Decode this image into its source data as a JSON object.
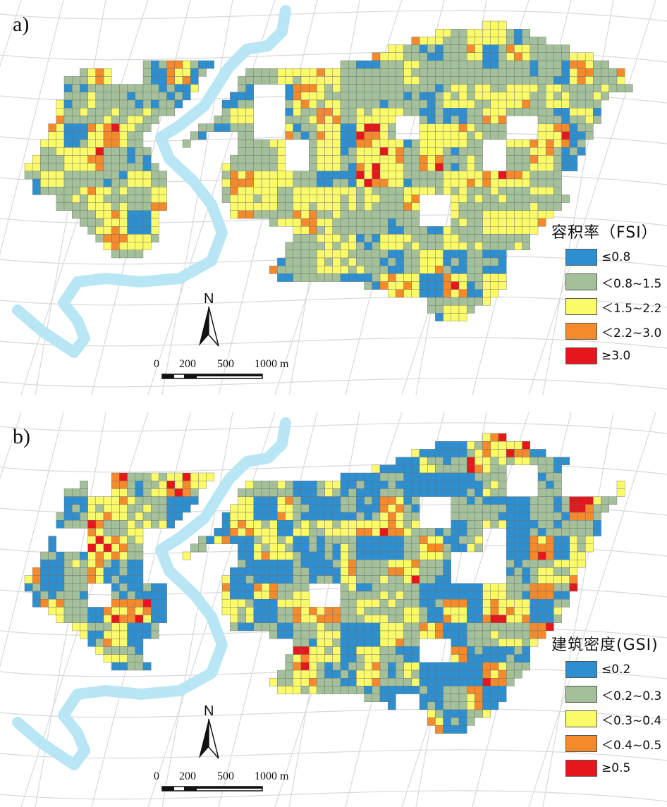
{
  "panels": [
    {
      "label": "a)",
      "legend_title": "容积率（FSI）",
      "classes": [
        {
          "label": "≤0.8",
          "color": "#2e8fd0"
        },
        {
          "label": "＜0.8~1.5",
          "color": "#a3c09a"
        },
        {
          "label": "＜1.5~2.2",
          "color": "#fbfa68"
        },
        {
          "label": "＜2.2~3.0",
          "color": "#f48a2b"
        },
        {
          "label": "≥3.0",
          "color": "#e6171c"
        }
      ]
    },
    {
      "label": "b)",
      "legend_title": "建筑密度(GSI)",
      "classes": [
        {
          "label": "≤0.2",
          "color": "#2e8fd0"
        },
        {
          "label": "＜0.2~0.3",
          "color": "#a3c09a"
        },
        {
          "label": "＜0.3~0.4",
          "color": "#fbfa68"
        },
        {
          "label": "＜0.4~0.5",
          "color": "#f48a2b"
        },
        {
          "label": "≥0.5",
          "color": "#e6171c"
        }
      ]
    }
  ],
  "north_label": "N",
  "scale": {
    "ticks": [
      "0",
      "200",
      "500",
      "1000 m"
    ]
  },
  "colors": {
    "river": "#b9e6f4",
    "roads": "#d9d9d9",
    "grid_line": "#6b6b6b"
  }
}
